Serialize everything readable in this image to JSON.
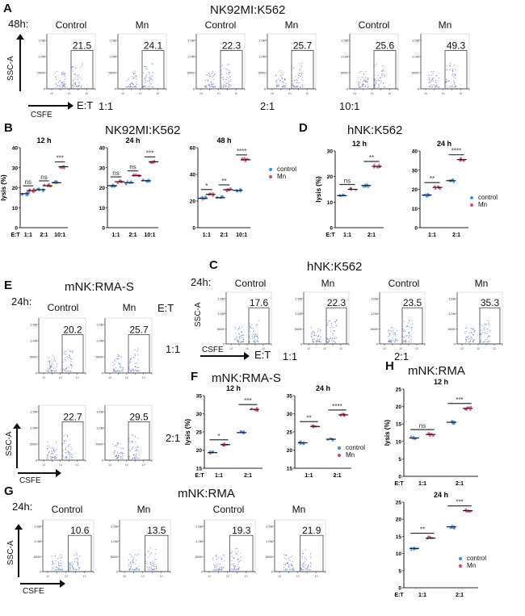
{
  "colors": {
    "control": "#3a8ee6",
    "Mn": "#e0406e",
    "flow": "#6a78d8"
  },
  "flow_axis": {
    "yticks": [
      "1.5M",
      "1.0M",
      "500K",
      "0"
    ],
    "xtick": "10"
  },
  "legend": [
    "control",
    "Mn"
  ],
  "panels": {
    "A": {
      "label": "A",
      "title": "NK92MI:K562",
      "time": "48h:",
      "ylabel": "SSC-A",
      "xlabel": "CSFE",
      "et": "E:T",
      "ratios": [
        "1:1",
        "2:1",
        "10:1"
      ],
      "plots": [
        {
          "group": "Control",
          "value": "21.5"
        },
        {
          "group": "Mn",
          "value": "24.1"
        },
        {
          "group": "Control",
          "value": "22.3"
        },
        {
          "group": "Mn",
          "value": "25.7"
        },
        {
          "group": "Control",
          "value": "25.6"
        },
        {
          "group": "Mn",
          "value": "49.3"
        }
      ]
    },
    "B": {
      "label": "B",
      "title": "NK92MI:K562"
    },
    "C": {
      "label": "C",
      "title": "hNK:K562",
      "time": "24h:",
      "ylabel": "SSC-A",
      "xlabel": "CSFE",
      "et": "E:T",
      "ratios": [
        "1:1",
        "2:1"
      ],
      "plots": [
        {
          "group": "Control",
          "value": "17.6"
        },
        {
          "group": "Mn",
          "value": "22.3"
        },
        {
          "group": "Control",
          "value": "23.5"
        },
        {
          "group": "Mn",
          "value": "35.3"
        }
      ]
    },
    "D": {
      "label": "D",
      "title": "hNK:K562"
    },
    "E": {
      "label": "E",
      "title": "mNK:RMA-S",
      "time": "24h:",
      "ylabel": "SSC-A",
      "xlabel": "CSFE",
      "et": "E:T",
      "ratios": [
        "1:1",
        "2:1"
      ],
      "plots": [
        {
          "group": "Control",
          "value": "20.2"
        },
        {
          "group": "Mn",
          "value": "25.7"
        },
        {
          "group": "",
          "value": "22.7"
        },
        {
          "group": "",
          "value": "29.5"
        }
      ]
    },
    "F": {
      "label": "F",
      "title": "mNK:RMA-S"
    },
    "G": {
      "label": "G",
      "title": "mNK:RMA",
      "time": "24h:",
      "ylabel": "SSC-A",
      "xlabel": "CSFE",
      "plots": [
        {
          "group": "Control",
          "value": "10.6"
        },
        {
          "group": "Mn",
          "value": "13.5"
        },
        {
          "group": "Control",
          "value": "19.3"
        },
        {
          "group": "Mn",
          "value": "21.9"
        }
      ]
    },
    "H": {
      "label": "H",
      "title": "mNK:RMA"
    }
  },
  "chart_data": [
    {
      "id": "B12",
      "type": "scatter",
      "title": "12 h",
      "xlabel": "E:T",
      "ylabel": "lysis (%)",
      "categories": [
        "1:1",
        "2:1",
        "10:1"
      ],
      "ylim": [
        0,
        40
      ],
      "yticks": [
        0,
        10,
        20,
        30,
        40
      ],
      "series": [
        {
          "name": "control",
          "values": [
            17,
            19,
            22.5
          ]
        },
        {
          "name": "Mn",
          "values": [
            18.5,
            21,
            30.5
          ]
        }
      ],
      "significance": [
        "ns",
        "ns",
        "***"
      ]
    },
    {
      "id": "B24",
      "type": "scatter",
      "title": "24 h",
      "xlabel": "",
      "ylabel": "",
      "categories": [
        "1:1",
        "2:1",
        "10:1"
      ],
      "ylim": [
        0,
        40
      ],
      "yticks": [
        0,
        10,
        20,
        30,
        40
      ],
      "series": [
        {
          "name": "control",
          "values": [
            21,
            22.5,
            23.5
          ]
        },
        {
          "name": "Mn",
          "values": [
            23,
            26,
            33
          ]
        }
      ],
      "significance": [
        "ns",
        "ns",
        "***"
      ]
    },
    {
      "id": "B48",
      "type": "scatter",
      "title": "48 h",
      "xlabel": "",
      "ylabel": "",
      "categories": [
        "1:1",
        "2:1",
        "10:1"
      ],
      "ylim": [
        0,
        60
      ],
      "yticks": [
        0,
        20,
        40,
        60
      ],
      "series": [
        {
          "name": "control",
          "values": [
            22,
            22.5,
            28
          ]
        },
        {
          "name": "Mn",
          "values": [
            25,
            28.5,
            51
          ]
        }
      ],
      "significance": [
        "*",
        "**",
        "****"
      ]
    },
    {
      "id": "D12",
      "type": "scatter",
      "title": "12 h",
      "xlabel": "E:T",
      "ylabel": "lysis (%)",
      "categories": [
        "1:1",
        "2:1"
      ],
      "ylim": [
        0,
        30
      ],
      "yticks": [
        0,
        10,
        20,
        30
      ],
      "series": [
        {
          "name": "control",
          "values": [
            12.5,
            16.5
          ]
        },
        {
          "name": "Mn",
          "values": [
            15,
            24
          ]
        }
      ],
      "significance": [
        "ns",
        "**"
      ]
    },
    {
      "id": "D24",
      "type": "scatter",
      "title": "24 h",
      "xlabel": "",
      "ylabel": "",
      "categories": [
        "1:1",
        "2:1"
      ],
      "ylim": [
        0,
        40
      ],
      "yticks": [
        0,
        10,
        20,
        30,
        40
      ],
      "series": [
        {
          "name": "control",
          "values": [
            17,
            24.5
          ]
        },
        {
          "name": "Mn",
          "values": [
            21,
            35.5
          ]
        }
      ],
      "significance": [
        "**",
        "****"
      ]
    },
    {
      "id": "F12",
      "type": "scatter",
      "title": "12 h",
      "xlabel": "E:T",
      "ylabel": "lysis (%)",
      "categories": [
        "1:1",
        "2:1"
      ],
      "ylim": [
        15,
        35
      ],
      "yticks": [
        15,
        20,
        25,
        30,
        35
      ],
      "series": [
        {
          "name": "control",
          "values": [
            19.3,
            24.8
          ]
        },
        {
          "name": "Mn",
          "values": [
            21.5,
            31.2
          ]
        }
      ],
      "significance": [
        "*",
        "***"
      ]
    },
    {
      "id": "F24",
      "type": "scatter",
      "title": "24 h",
      "xlabel": "",
      "ylabel": "",
      "categories": [
        "1:1",
        "2:1"
      ],
      "ylim": [
        15,
        35
      ],
      "yticks": [
        15,
        20,
        25,
        30,
        35
      ],
      "series": [
        {
          "name": "control",
          "values": [
            22,
            23
          ]
        },
        {
          "name": "Mn",
          "values": [
            26.5,
            29.7
          ]
        }
      ],
      "significance": [
        "**",
        "****"
      ]
    },
    {
      "id": "H12",
      "type": "scatter",
      "title": "12 h",
      "xlabel": "E:T",
      "ylabel": "lysis (%)",
      "categories": [
        "1:1",
        "2:1"
      ],
      "ylim": [
        0,
        25
      ],
      "yticks": [
        0,
        5,
        10,
        15,
        20,
        25
      ],
      "series": [
        {
          "name": "control",
          "values": [
            11,
            15.5
          ]
        },
        {
          "name": "Mn",
          "values": [
            12,
            19.5
          ]
        }
      ],
      "significance": [
        "ns",
        "***"
      ]
    },
    {
      "id": "H24",
      "type": "scatter",
      "title": "24 h",
      "xlabel": "E:T",
      "ylabel": "",
      "categories": [
        "1:1",
        "2:1"
      ],
      "ylim": [
        0,
        25
      ],
      "yticks": [
        0,
        5,
        10,
        15,
        20,
        25
      ],
      "series": [
        {
          "name": "control",
          "values": [
            11.5,
            17.8
          ]
        },
        {
          "name": "Mn",
          "values": [
            14.5,
            22.5
          ]
        }
      ],
      "significance": [
        "**",
        "***"
      ]
    }
  ]
}
